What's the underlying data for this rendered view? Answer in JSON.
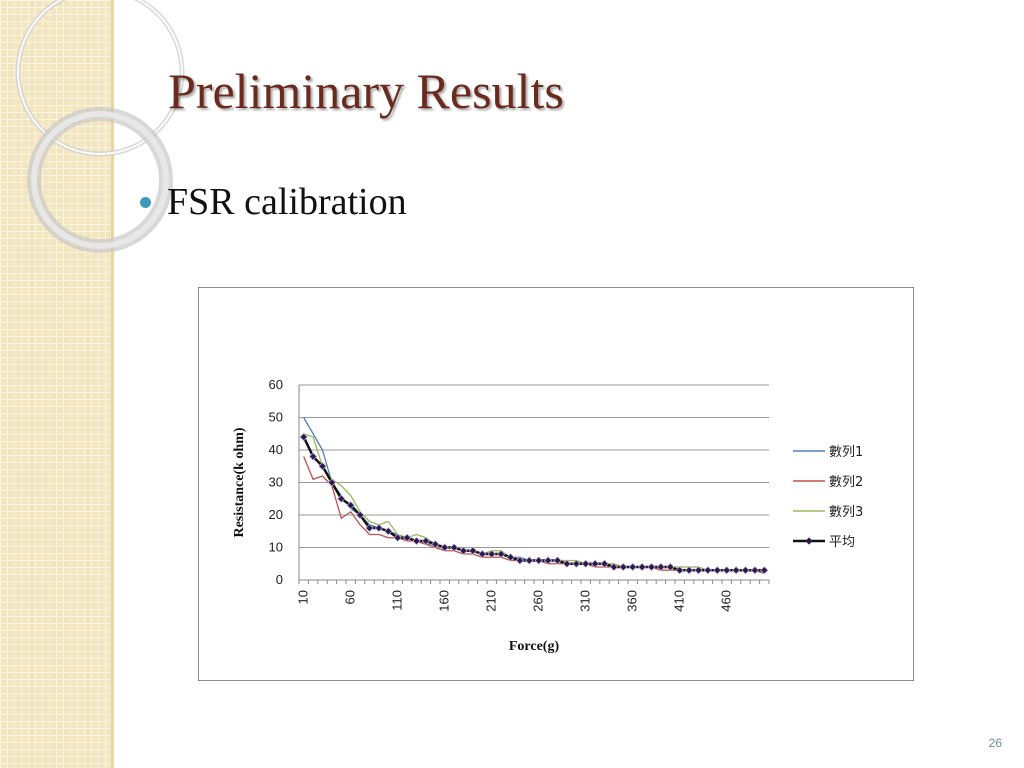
{
  "slide": {
    "title": "Preliminary Results",
    "bullets": [
      "FSR calibration"
    ],
    "page_number": "26"
  },
  "colors": {
    "title": "#6b2a1e",
    "bullet": "#3d9bb5",
    "series_1": "#4f81bd",
    "series_2": "#c0504d",
    "series_3": "#9bbb59",
    "average": "#111111",
    "average_marker": "#2a1a4a"
  },
  "chart_data": {
    "type": "line",
    "title": "",
    "xlabel": "Force(g)",
    "ylabel": "Resistance(k ohm)",
    "ylim": [
      0,
      60
    ],
    "yticks": [
      0,
      10,
      20,
      30,
      40,
      50,
      60
    ],
    "x": [
      10,
      20,
      30,
      40,
      50,
      60,
      70,
      80,
      90,
      100,
      110,
      120,
      130,
      140,
      150,
      160,
      170,
      180,
      190,
      200,
      210,
      220,
      230,
      240,
      250,
      260,
      270,
      280,
      290,
      300,
      310,
      320,
      330,
      340,
      350,
      360,
      370,
      380,
      390,
      400,
      410,
      420,
      430,
      440,
      450,
      460,
      470,
      480,
      490,
      500
    ],
    "xtick_labels": [
      "10",
      "60",
      "110",
      "160",
      "210",
      "260",
      "310",
      "360",
      "410",
      "460"
    ],
    "grid": "horizontal",
    "legend_position": "right",
    "series": [
      {
        "name": "數列1",
        "values": [
          50,
          45,
          40,
          30,
          26,
          22,
          20,
          17,
          16,
          15,
          14,
          13,
          12,
          11,
          11,
          10,
          10,
          9,
          9,
          8,
          8,
          8,
          7,
          7,
          6,
          6,
          6,
          6,
          5,
          5,
          5,
          5,
          5,
          4,
          4,
          4,
          4,
          4,
          4,
          4,
          3,
          3,
          3,
          3,
          3,
          3,
          3,
          3,
          3,
          3
        ]
      },
      {
        "name": "數列2",
        "values": [
          38,
          31,
          32,
          29,
          19,
          21,
          17,
          14,
          14,
          13,
          13,
          12,
          12,
          11,
          10,
          9,
          9,
          8,
          8,
          7,
          7,
          7,
          6,
          6,
          6,
          6,
          5,
          5,
          5,
          5,
          5,
          4,
          4,
          4,
          4,
          4,
          4,
          4,
          3,
          3,
          3,
          3,
          3,
          3,
          3,
          3,
          3,
          3,
          3,
          2
        ]
      },
      {
        "name": "數列3",
        "values": [
          45,
          44,
          35,
          31,
          29,
          26,
          21,
          18,
          17,
          18,
          14,
          13,
          14,
          13,
          11,
          10,
          10,
          9,
          9,
          8,
          9,
          9,
          7,
          6,
          6,
          6,
          6,
          6,
          6,
          6,
          5,
          5,
          5,
          5,
          4,
          4,
          4,
          4,
          4,
          4,
          4,
          4,
          4,
          3,
          3,
          3,
          3,
          3,
          3,
          3
        ]
      },
      {
        "name": "平均",
        "values": [
          44,
          38,
          35,
          30,
          25,
          23,
          20,
          16,
          16,
          15,
          13,
          13,
          12,
          12,
          11,
          10,
          10,
          9,
          9,
          8,
          8,
          8,
          7,
          6,
          6,
          6,
          6,
          6,
          5,
          5,
          5,
          5,
          5,
          4,
          4,
          4,
          4,
          4,
          4,
          4,
          3,
          3,
          3,
          3,
          3,
          3,
          3,
          3,
          3,
          3
        ]
      }
    ]
  }
}
